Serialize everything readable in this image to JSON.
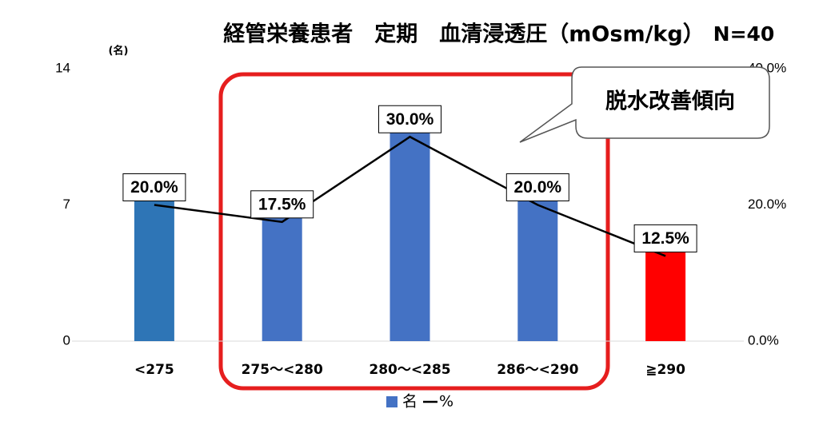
{
  "chart_data": {
    "type": "bar",
    "title": "経管栄養患者　定期　血清浸透圧（mOsm/kg）",
    "subtitle": "N=40",
    "y_label": "(名)",
    "annotations": [
      "脱水改善傾向"
    ],
    "categories": [
      "<275",
      "275～<280",
      "280～<285",
      "286～<290",
      "≧290"
    ],
    "series": [
      {
        "name": "名",
        "type": "bar",
        "color": "#4472c4",
        "colors": [
          "#2e75b6",
          "#4472c4",
          "#4472c4",
          "#4472c4",
          "#ff0000"
        ],
        "values": [
          8,
          7,
          12,
          8,
          5
        ]
      },
      {
        "name": "%",
        "type": "line",
        "axis": "y2",
        "color": "#000000",
        "values": [
          20,
          17.5,
          30,
          20,
          12.5
        ],
        "value_labels": [
          "20.0%",
          "17.5%",
          "30.0%",
          "20.0%",
          "12.5%"
        ]
      }
    ],
    "ylim": [
      0,
      14
    ],
    "yticks": [
      0,
      7,
      14
    ],
    "y2lim": [
      0,
      40
    ],
    "y2ticks": [
      {
        "value": 0,
        "label": "0.0%"
      },
      {
        "value": 20,
        "label": "20.0%"
      },
      {
        "value": 40,
        "label": "40.0%"
      }
    ],
    "grid": false,
    "legend": "bottom"
  }
}
